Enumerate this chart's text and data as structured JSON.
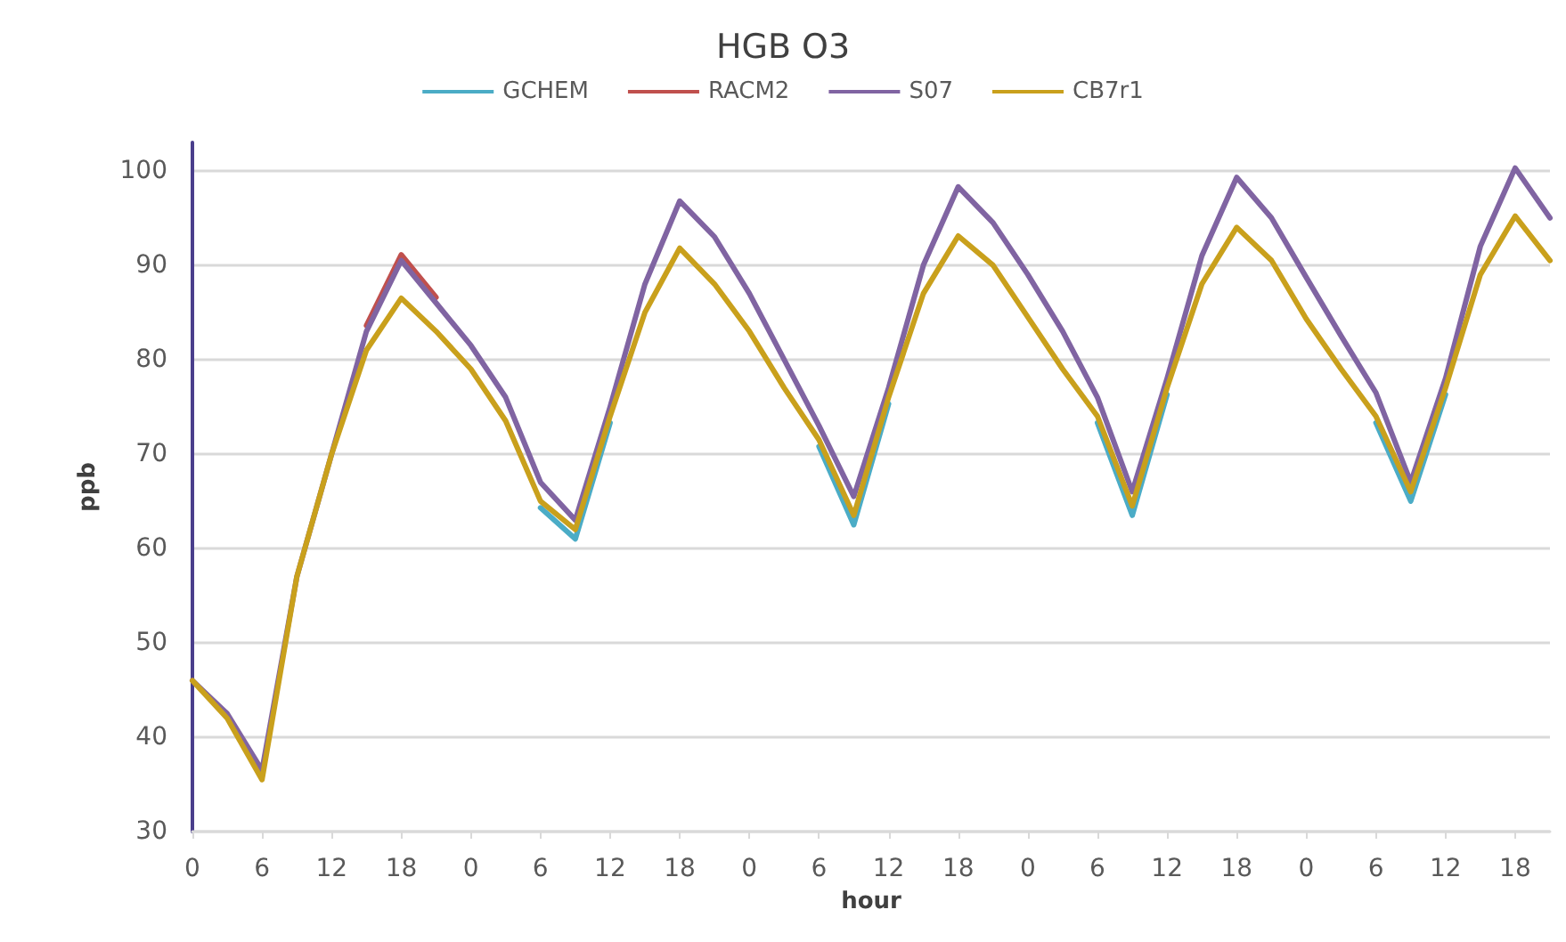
{
  "chart_data": {
    "type": "line",
    "title": "HGB O3",
    "xlabel": "hour",
    "ylabel": "ppb",
    "categories": [
      "0",
      null,
      "6",
      null,
      "12",
      null,
      "18",
      null,
      "0",
      null,
      "6",
      null,
      "12",
      null,
      "18",
      null,
      "0",
      null,
      "6",
      null,
      "12",
      null,
      "18",
      null,
      "0",
      null,
      "6",
      null,
      "12",
      null,
      "18",
      null,
      "0",
      null,
      "6",
      null,
      "12",
      null,
      "18",
      null
    ],
    "series": [
      {
        "name": "GCHEM",
        "color": "#4bacc6",
        "values": [
          null,
          null,
          null,
          null,
          null,
          null,
          null,
          null,
          null,
          null,
          64.3,
          61,
          73.3,
          null,
          null,
          null,
          null,
          null,
          70.8,
          62.5,
          75.3,
          null,
          null,
          null,
          null,
          null,
          73.3,
          63.5,
          76.3,
          null,
          null,
          null,
          null,
          null,
          73.3,
          65,
          76.3,
          null,
          null,
          null
        ]
      },
      {
        "name": "RACM2",
        "color": "#c0504d",
        "values": [
          null,
          null,
          null,
          null,
          null,
          83.6,
          91.1,
          86.6,
          null,
          null,
          null,
          null,
          null,
          null,
          null,
          null,
          null,
          null,
          null,
          null,
          null,
          null,
          null,
          null,
          null,
          null,
          null,
          null,
          null,
          null,
          null,
          null,
          null,
          null,
          null,
          null,
          null,
          null,
          null,
          null
        ]
      },
      {
        "name": "S07",
        "color": "#8064a2",
        "values": [
          46,
          42.5,
          36.5,
          57,
          70,
          83,
          90.5,
          86,
          81.5,
          76,
          67,
          63,
          75,
          88,
          96.8,
          93,
          87,
          80,
          73,
          65.5,
          77,
          90,
          98.3,
          94.5,
          89,
          83,
          76,
          66,
          78,
          91,
          99.3,
          95,
          88.7,
          82.5,
          76.5,
          67,
          78,
          92,
          100.3,
          95
        ]
      },
      {
        "name": "CB7r1",
        "color": "#c9a01c",
        "values": [
          46,
          42,
          35.5,
          57,
          70,
          81,
          86.5,
          83,
          79,
          73.5,
          65,
          62,
          74,
          85,
          91.8,
          88,
          83,
          77,
          71.5,
          63.5,
          76,
          87,
          93.1,
          90,
          84.5,
          79,
          74,
          64.5,
          77,
          88,
          94,
          90.5,
          84.3,
          79,
          74,
          66,
          77,
          89,
          95.2,
          90.5
        ]
      }
    ],
    "ylim": [
      30,
      103
    ],
    "yticks": [
      30,
      40,
      50,
      60,
      70,
      80,
      90,
      100
    ],
    "grid": "y",
    "legend": "top",
    "marker": "none",
    "line_style": "solid"
  }
}
